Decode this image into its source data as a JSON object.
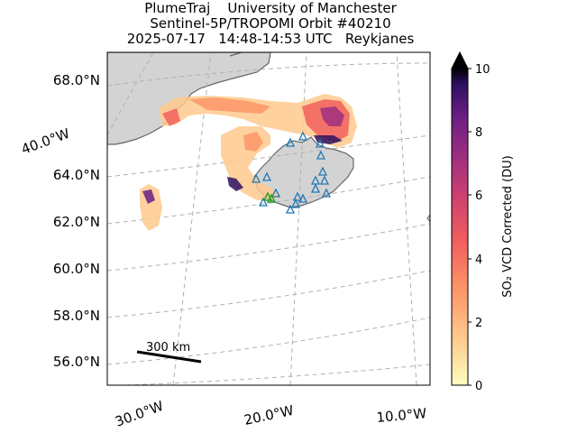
{
  "title": {
    "line1": "PlumeTraj    University of Manchester",
    "line2": "Sentinel-5P/TROPOMI Orbit #40210",
    "line3": "2025-07-17   14:48-14:53 UTC   Reykjanes"
  },
  "map": {
    "lat_labels": [
      "68.0°N",
      "64.0°N",
      "62.0°N",
      "60.0°N",
      "58.0°N",
      "56.0°N"
    ],
    "lon_labels": [
      "30.0°W",
      "20.0°W",
      "10.0°W"
    ],
    "side_label": "40.0°W",
    "scale_bar_label": "300 km",
    "colors": {
      "land": "#d3d3d3",
      "coast": "#666666",
      "grid": "#b0b0b0",
      "volcano_marker": "#1f77b4",
      "source_marker": "#2ca02c"
    }
  },
  "colorbar": {
    "label": "SO₂ VCD Corrected (DU)",
    "ticks": [
      "0",
      "2",
      "4",
      "6",
      "8",
      "10"
    ],
    "min": 0,
    "max": 10,
    "colormap": "magma_r",
    "extend": "max"
  }
}
